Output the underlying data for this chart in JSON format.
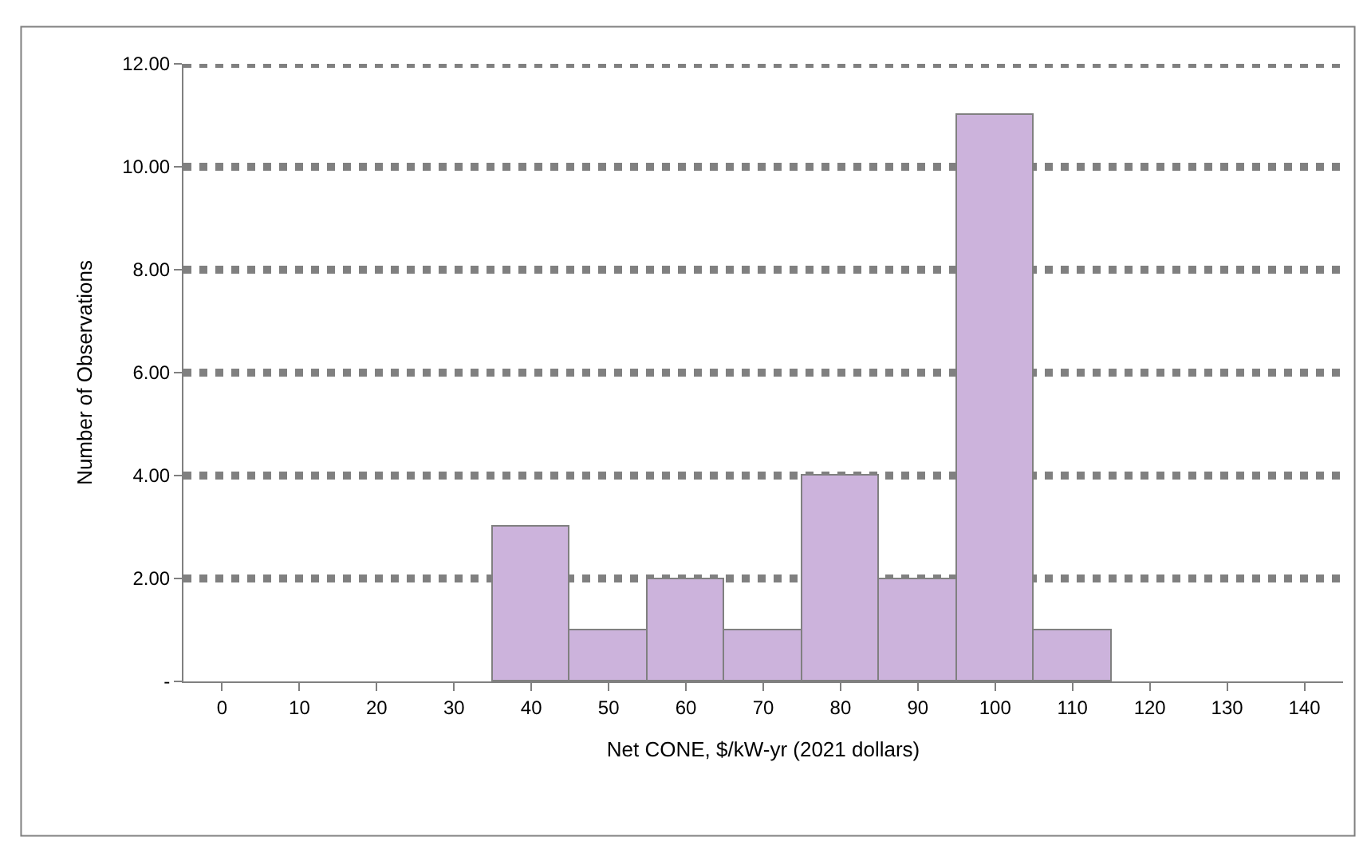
{
  "chart_data": {
    "type": "bar",
    "categories": [
      "0",
      "10",
      "20",
      "30",
      "40",
      "50",
      "60",
      "70",
      "80",
      "90",
      "100",
      "110",
      "120",
      "130",
      "140"
    ],
    "values": [
      0,
      0,
      0,
      0,
      3,
      1,
      2,
      1,
      4,
      2,
      11,
      1,
      0,
      0,
      0
    ],
    "color": "#ccb3dc",
    "xlabel": "Net CONE, $/kW-yr (2021 dollars)",
    "ylabel": "Number of Observations",
    "ylim": [
      0,
      12
    ],
    "yticks": [
      {
        "value": 0,
        "label": "-"
      },
      {
        "value": 2,
        "label": "2.00"
      },
      {
        "value": 4,
        "label": "4.00"
      },
      {
        "value": 6,
        "label": "6.00"
      },
      {
        "value": 8,
        "label": "8.00"
      },
      {
        "value": 10,
        "label": "10.00"
      },
      {
        "value": 12,
        "label": "12.00"
      }
    ],
    "grid": "y",
    "legend": false
  }
}
